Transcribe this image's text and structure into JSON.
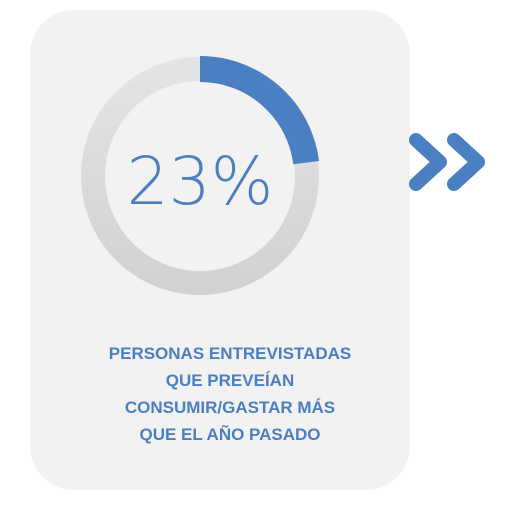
{
  "chart_data": {
    "type": "donut",
    "values": [
      23
    ],
    "value_labels": [
      "23%"
    ],
    "color": "#4a7fc1",
    "track_color": "#dcdcdc",
    "caption": "PERSONAS ENTREVISTADAS\nQUE PREVEÍAN\nCONSUMIR/GASTAR MÁS\nQUE EL AÑO PASADO"
  }
}
